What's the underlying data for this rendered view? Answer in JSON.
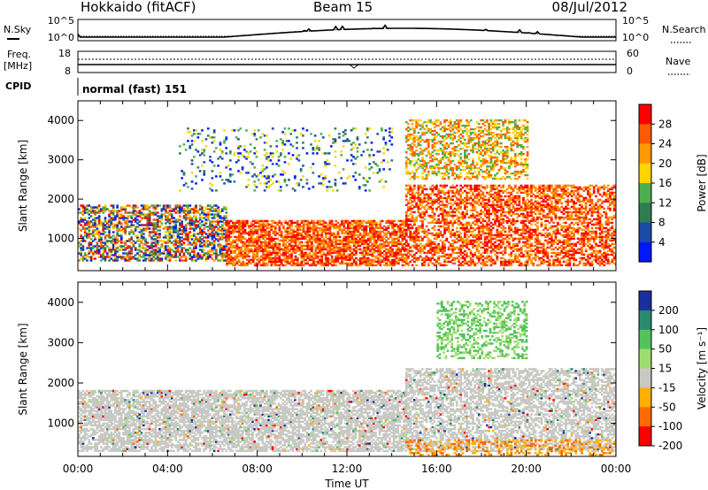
{
  "header": {
    "station": "Hokkaido (fitACF)",
    "beam": "Beam 15",
    "date": "08/Jul/2012"
  },
  "chart_data": [
    {
      "id": "status",
      "type": "line",
      "rows": {
        "noise": {
          "left_label": "N.Sky",
          "left_ticks": [
            "10^5",
            "10^0"
          ],
          "right_label": "N.Search",
          "right_ticks": [
            "10^5",
            "10^0"
          ]
        },
        "freq": {
          "left_label": "Freq.",
          "left_unit": "[MHz]",
          "left_ticks": [
            "18",
            "8"
          ],
          "right_label": "Nave",
          "right_ticks": [
            "60",
            "0"
          ]
        },
        "cpid": {
          "left_label": "CPID",
          "text": "normal (fast) 151"
        }
      }
    },
    {
      "id": "power",
      "type": "heatmap",
      "ylabel": "Slant Range [km]",
      "y_ticks": [
        1000,
        2000,
        3000,
        4000
      ],
      "ylim": [
        180,
        4500
      ],
      "xlim": [
        0,
        24
      ],
      "colorbar": {
        "label": "Power [dB]",
        "ticks": [
          "28",
          "24",
          "20",
          "16",
          "12",
          "8",
          "4"
        ],
        "colors": [
          "#ff0000",
          "#ff5a00",
          "#ff9a00",
          "#ffd500",
          "#4caf50",
          "#2e7d52",
          "#1c4aa8",
          "#0018ff"
        ]
      },
      "echo_bands": [
        {
          "t0": 0,
          "t1": 6.6,
          "r0": 420,
          "r1": 1820,
          "level": "mixed",
          "density": 0.6
        },
        {
          "t0": 6.6,
          "t1": 14.6,
          "r0": 300,
          "r1": 1450,
          "level": "strong",
          "density": 0.72
        },
        {
          "t0": 14.6,
          "t1": 24,
          "r0": 300,
          "r1": 2350,
          "level": "strong",
          "density": 0.55
        },
        {
          "t0": 14.6,
          "t1": 20,
          "r0": 2500,
          "r1": 4000,
          "level": "medium",
          "density": 0.45
        },
        {
          "t0": 4.5,
          "t1": 14,
          "r0": 2200,
          "r1": 3800,
          "level": "weak",
          "density": 0.12
        }
      ]
    },
    {
      "id": "velocity",
      "type": "heatmap",
      "ylabel": "Slant Range [km]",
      "xlabel": "Time UT",
      "x_ticks": [
        "00:00",
        "04:00",
        "08:00",
        "12:00",
        "16:00",
        "20:00",
        "00:00"
      ],
      "y_ticks": [
        1000,
        2000,
        3000,
        4000
      ],
      "ylim": [
        180,
        4500
      ],
      "xlim": [
        0,
        24
      ],
      "colorbar": {
        "label": "Velocity [m s⁻¹]",
        "ticks": [
          "200",
          "100",
          "50",
          "15",
          "-15",
          "-50",
          "-100",
          "-200"
        ],
        "colors": [
          "#1a2f9f",
          "#2a8a6e",
          "#52c45a",
          "#9fdc6e",
          "#c8c8c4",
          "#ffb000",
          "#ff6a00",
          "#ff0000"
        ]
      },
      "echo_bands": [
        {
          "t0": 0,
          "t1": 14.6,
          "r0": 300,
          "r1": 1800,
          "level": "ground",
          "density": 0.7
        },
        {
          "t0": 14.6,
          "t1": 24,
          "r0": 300,
          "r1": 2350,
          "level": "ground",
          "density": 0.6
        },
        {
          "t0": 16,
          "t1": 20,
          "r0": 2600,
          "r1": 4000,
          "level": "positive",
          "density": 0.4
        },
        {
          "t0": 14.6,
          "t1": 24,
          "r0": 200,
          "r1": 600,
          "level": "negative",
          "density": 0.3
        }
      ]
    }
  ]
}
